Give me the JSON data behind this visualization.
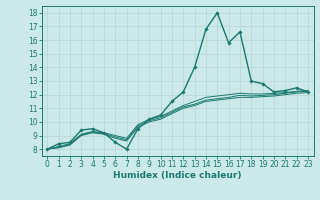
{
  "xlabel": "Humidex (Indice chaleur)",
  "xlim": [
    -0.5,
    23.5
  ],
  "ylim": [
    7.5,
    18.5
  ],
  "xticks": [
    0,
    1,
    2,
    3,
    4,
    5,
    6,
    7,
    8,
    9,
    10,
    11,
    12,
    13,
    14,
    15,
    16,
    17,
    18,
    19,
    20,
    21,
    22,
    23
  ],
  "yticks": [
    8,
    9,
    10,
    11,
    12,
    13,
    14,
    15,
    16,
    17,
    18
  ],
  "bg_color": "#cce9e9",
  "line_color": "#1a7a6e",
  "grid_color": "#b8d8d8",
  "tick_fontsize": 5.5,
  "xlabel_fontsize": 6.5,
  "curves": [
    {
      "x": [
        0,
        1,
        2,
        3,
        4,
        5,
        6,
        7,
        8,
        9,
        10,
        11,
        12,
        13,
        14,
        15,
        16,
        17,
        18,
        19,
        20,
        21,
        22,
        23
      ],
      "y": [
        8.0,
        8.4,
        8.5,
        9.4,
        9.5,
        9.2,
        8.5,
        8.0,
        9.5,
        10.2,
        10.5,
        11.5,
        12.2,
        14.0,
        16.8,
        18.0,
        15.8,
        16.6,
        13.0,
        12.8,
        12.2,
        12.3,
        12.5,
        12.2
      ],
      "marker": true,
      "lw": 1.0
    },
    {
      "x": [
        0,
        1,
        2,
        3,
        4,
        5,
        6,
        7,
        8,
        9,
        10,
        11,
        12,
        13,
        14,
        15,
        16,
        17,
        18,
        19,
        20,
        21,
        22,
        23
      ],
      "y": [
        8.0,
        8.1,
        8.3,
        9.0,
        9.2,
        9.1,
        8.8,
        8.6,
        9.6,
        10.0,
        10.2,
        10.6,
        11.0,
        11.2,
        11.5,
        11.6,
        11.7,
        11.8,
        11.8,
        11.85,
        11.9,
        12.0,
        12.1,
        12.15
      ],
      "marker": false,
      "lw": 0.7
    },
    {
      "x": [
        0,
        1,
        2,
        3,
        4,
        5,
        6,
        7,
        8,
        9,
        10,
        11,
        12,
        13,
        14,
        15,
        16,
        17,
        18,
        19,
        20,
        21,
        22,
        23
      ],
      "y": [
        8.0,
        8.15,
        8.35,
        9.05,
        9.25,
        9.15,
        8.9,
        8.7,
        9.7,
        10.1,
        10.3,
        10.7,
        11.1,
        11.3,
        11.6,
        11.7,
        11.8,
        11.95,
        11.9,
        11.95,
        12.0,
        12.1,
        12.2,
        12.25
      ],
      "marker": false,
      "lw": 0.7
    },
    {
      "x": [
        0,
        1,
        2,
        3,
        4,
        5,
        6,
        7,
        8,
        9,
        10,
        11,
        12,
        13,
        14,
        15,
        16,
        17,
        18,
        19,
        20,
        21,
        22,
        23
      ],
      "y": [
        8.0,
        8.2,
        8.4,
        9.1,
        9.3,
        9.2,
        9.0,
        8.8,
        9.8,
        10.2,
        10.4,
        10.8,
        11.2,
        11.5,
        11.8,
        11.9,
        12.0,
        12.1,
        12.05,
        12.05,
        12.1,
        12.15,
        12.25,
        12.3
      ],
      "marker": false,
      "lw": 0.7
    }
  ]
}
